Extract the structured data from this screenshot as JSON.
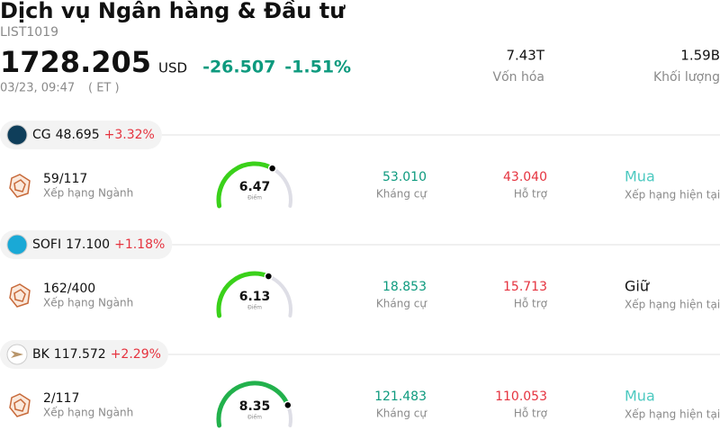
{
  "header": {
    "title": "Dịch vụ Ngân hàng & Đầu tư",
    "code": "LIST1019",
    "price": "1728.205",
    "currency": "USD",
    "change": "-26.507",
    "change_pct": "-1.51%",
    "time": "03/23, 09:47",
    "timezone": "( ET )"
  },
  "stats": [
    {
      "value": "7.43T",
      "label": "Vốn hóa"
    },
    {
      "value": "1.59B",
      "label": "Khối lượng"
    }
  ],
  "stocks": [
    {
      "symbol": "CG",
      "price": "48.695",
      "change": "+3.32%",
      "rank": "59/117",
      "rank_label": "Xếp hạng Ngành",
      "score": 6.47,
      "score_label": "Điểm",
      "resistance": "53.010",
      "resistance_label": "Kháng cự",
      "support": "43.040",
      "support_label": "Hỗ trợ",
      "rating": "Mua",
      "rating_color": "#4cc9c0",
      "rating_label": "Xếp hạng hiện tại"
    },
    {
      "symbol": "SOFI",
      "price": "17.100",
      "change": "+1.18%",
      "rank": "162/400",
      "rank_label": "Xếp hạng Ngành",
      "score": 6.13,
      "score_label": "Điểm",
      "resistance": "18.853",
      "resistance_label": "Kháng cự",
      "support": "15.713",
      "support_label": "Hỗ trợ",
      "rating": "Giữ",
      "rating_color": "#111111",
      "rating_label": "Xếp hạng hiện tại"
    },
    {
      "symbol": "BK",
      "price": "117.572",
      "change": "+2.29%",
      "rank": "2/117",
      "rank_label": "Xếp hạng Ngành",
      "score": 8.35,
      "score_label": "Điểm",
      "resistance": "121.483",
      "resistance_label": "Kháng cự",
      "support": "110.053",
      "support_label": "Hỗ trợ",
      "rating": "Mua",
      "rating_color": "#4cc9c0",
      "rating_label": "Xếp hạng hiện tại"
    }
  ]
}
